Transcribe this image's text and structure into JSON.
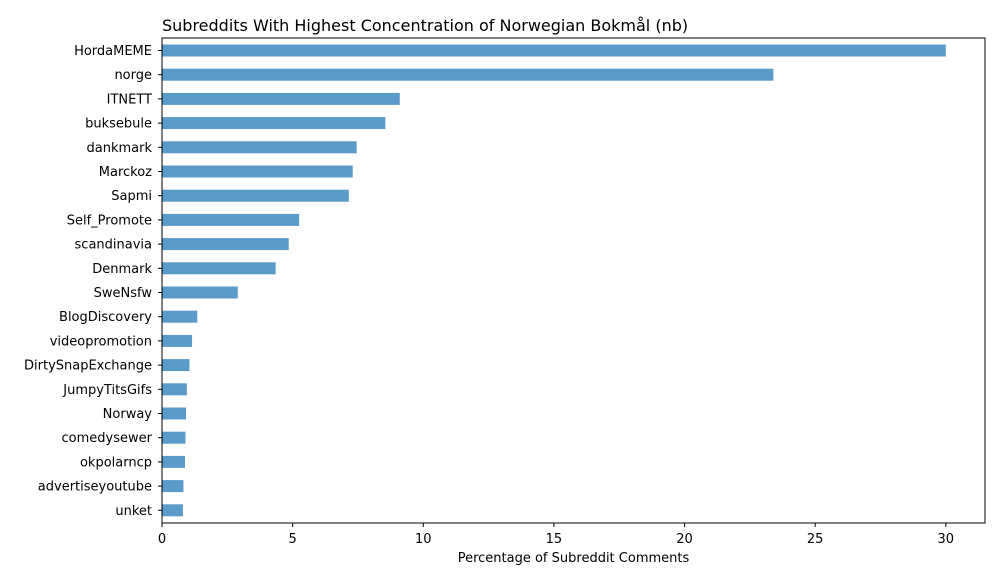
{
  "chart_data": {
    "type": "bar",
    "orientation": "horizontal",
    "title": "Subreddits With Highest Concentration of Norwegian Bokmål (nb)",
    "xlabel": "Percentage of Subreddit Comments",
    "ylabel": "",
    "xlim": [
      0,
      31.5
    ],
    "xticks": [
      0,
      5,
      10,
      15,
      20,
      25,
      30
    ],
    "grid": false,
    "legend": "none",
    "bar_color": "#5b9bc9",
    "categories": [
      "HordaMEME",
      "norge",
      "ITNETT",
      "buksebule",
      "dankmark",
      "Marckoz",
      "Sapmi",
      "Self_Promote",
      "scandinavia",
      "Denmark",
      "SweNsfw",
      "BlogDiscovery",
      "videopromotion",
      "DirtySnapExchange",
      "JumpyTitsGifs",
      "Norway",
      "comedysewer",
      "okpolarncp",
      "advertiseyoutube",
      "unket"
    ],
    "values": [
      30.0,
      23.4,
      9.1,
      8.55,
      7.45,
      7.3,
      7.15,
      5.25,
      4.85,
      4.35,
      2.9,
      1.35,
      1.15,
      1.05,
      0.95,
      0.92,
      0.9,
      0.88,
      0.82,
      0.8
    ]
  }
}
